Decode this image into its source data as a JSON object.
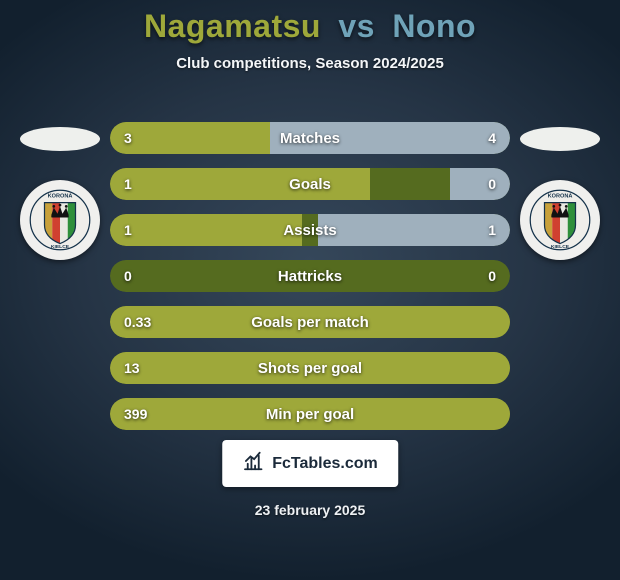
{
  "title": {
    "left": "Nagamatsu",
    "vs": "vs",
    "right": "Nono",
    "left_color": "#9ea83a",
    "vs_color": "#6fa3b8",
    "right_color": "#6fa3b8",
    "fontsize": 32
  },
  "subtitle": {
    "text": "Club competitions, Season 2024/2025",
    "fontsize": 15
  },
  "side_ellipse_color": "#eef0ed",
  "crest": {
    "ring_text": "KORONA",
    "ring_text2": "KIELCE",
    "stripe_colors": [
      "#c8a13a",
      "#d04030",
      "#e9e9e2",
      "#2e8f3a"
    ],
    "crown_color": "#121212"
  },
  "bars": {
    "track_color": "#556b1f",
    "left_color": "#9ea83a",
    "right_color": "#9fb0bd",
    "label_fontsize": 15,
    "value_fontsize": 14,
    "rows": [
      {
        "label": "Matches",
        "left": "3",
        "right": "4",
        "left_pct": 40,
        "right_pct": 60
      },
      {
        "label": "Goals",
        "left": "1",
        "right": "0",
        "left_pct": 65,
        "right_pct": 15
      },
      {
        "label": "Assists",
        "left": "1",
        "right": "1",
        "left_pct": 48,
        "right_pct": 48
      },
      {
        "label": "Hattricks",
        "left": "0",
        "right": "0",
        "left_pct": 0,
        "right_pct": 0
      },
      {
        "label": "Goals per match",
        "left": "0.33",
        "right": "",
        "left_pct": 100,
        "right_pct": 0
      },
      {
        "label": "Shots per goal",
        "left": "13",
        "right": "",
        "left_pct": 100,
        "right_pct": 0
      },
      {
        "label": "Min per goal",
        "left": "399",
        "right": "",
        "left_pct": 100,
        "right_pct": 0
      }
    ]
  },
  "brand": {
    "text": "FcTables.com",
    "fontsize": 16
  },
  "date": {
    "text": "23 february 2025",
    "fontsize": 14
  }
}
